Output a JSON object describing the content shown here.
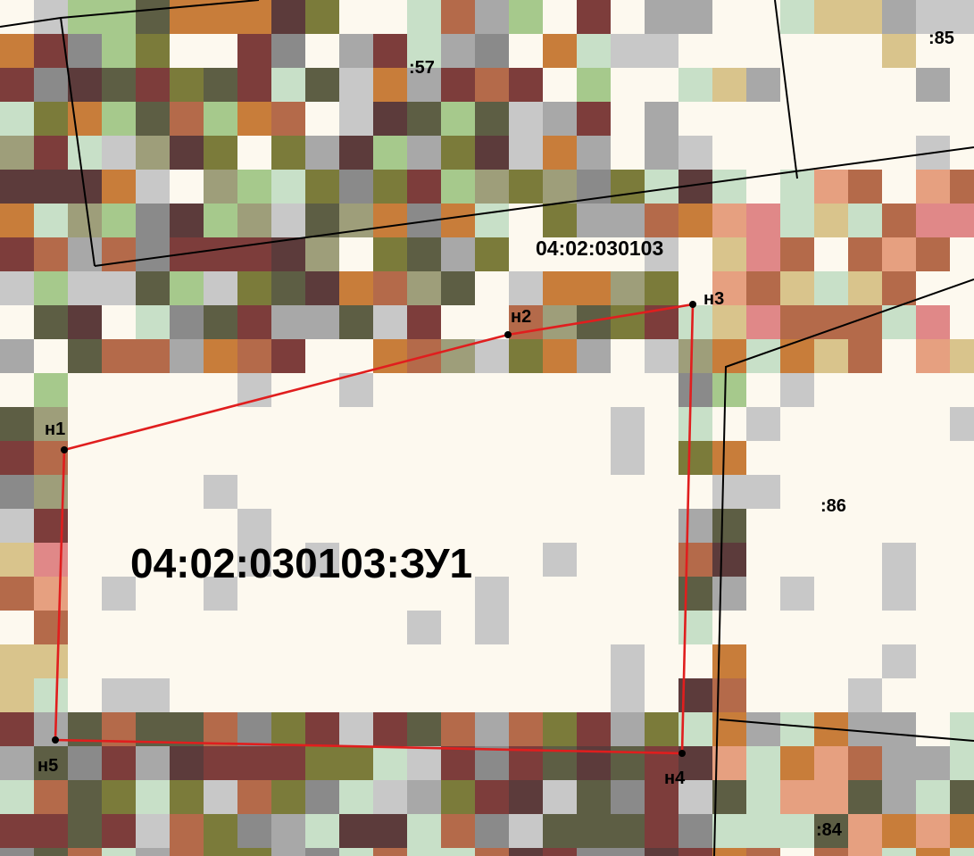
{
  "map": {
    "main_plot": "04:02:030103:ЗУ1",
    "quarter": "04:02:030103",
    "parcels": [
      ":57",
      ":85",
      ":86",
      ":84"
    ],
    "vertices": [
      "н1",
      "н2",
      "н3",
      "н4",
      "н5"
    ]
  },
  "colors": {
    "boundary_new": "#e01e1e",
    "boundary_existing": "#000000",
    "vertex": "#000000",
    "background": "#fdf9ef"
  },
  "raster_palette": [
    "#fdf9ef",
    "#5d5e44",
    "#5c3b3b",
    "#7d3d3b",
    "#b46a4a",
    "#c87d3a",
    "#a8a8a8",
    "#c8c8c8",
    "#c8e0c8",
    "#d9c48c",
    "#e6a080",
    "#9e9e7a",
    "#8a8a8a",
    "#7b7b3a",
    "#e08888",
    "#a6c98c"
  ]
}
